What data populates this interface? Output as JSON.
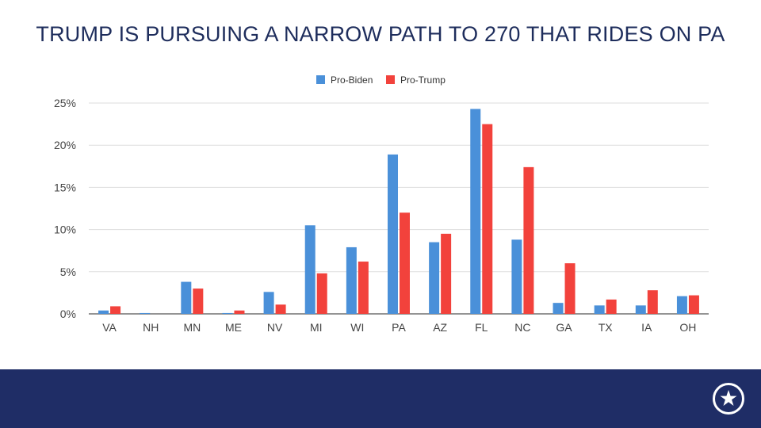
{
  "title": "TRUMP IS PURSUING A NARROW PATH TO 270 THAT RIDES ON PA",
  "colors": {
    "series_a": "#4a90d9",
    "series_b": "#f2423c",
    "footer": "#1f2d66",
    "title": "#1e2d5c"
  },
  "logo_icon": "star-in-circle-icon",
  "chart_data": {
    "type": "bar",
    "categories": [
      "VA",
      "NH",
      "MN",
      "ME",
      "NV",
      "MI",
      "WI",
      "PA",
      "AZ",
      "FL",
      "NC",
      "GA",
      "TX",
      "IA",
      "OH"
    ],
    "series": [
      {
        "name": "Pro-Biden",
        "color": "#4a90d9",
        "values": [
          0.4,
          0.1,
          3.8,
          0.1,
          2.6,
          10.5,
          7.9,
          18.9,
          8.5,
          24.3,
          8.8,
          1.3,
          1.0,
          1.0,
          2.1
        ]
      },
      {
        "name": "Pro-Trump",
        "color": "#f2423c",
        "values": [
          0.9,
          0.0,
          3.0,
          0.4,
          1.1,
          4.8,
          6.2,
          12.0,
          9.5,
          22.5,
          17.4,
          6.0,
          1.7,
          2.8,
          2.2
        ]
      }
    ],
    "ylim": [
      0,
      25
    ],
    "yticks": [
      "0%",
      "5%",
      "10%",
      "15%",
      "20%",
      "25%"
    ],
    "ytick_values": [
      0,
      5,
      10,
      15,
      20,
      25
    ],
    "grid": true,
    "legend_position": "top-center"
  }
}
